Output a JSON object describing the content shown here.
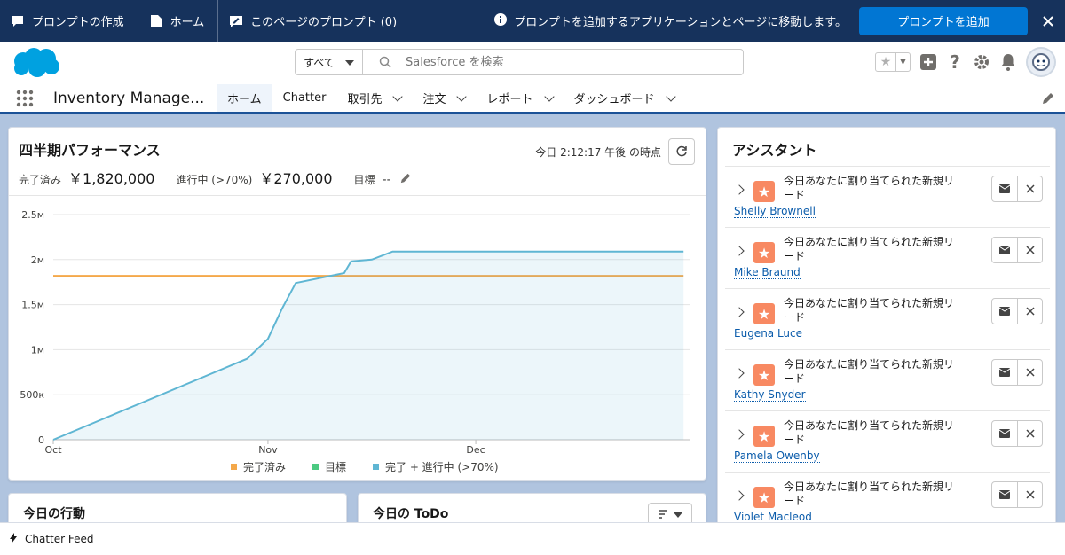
{
  "prompt_bar": {
    "create_prompt": "プロンプトの作成",
    "home": "ホーム",
    "page_prompts": "このページのプロンプト (0)",
    "info_message": "プロンプトを追加するアプリケーションとページに移動します。",
    "add_prompt": "プロンプトを追加"
  },
  "search": {
    "scope": "すべて",
    "placeholder": "Salesforce を検索"
  },
  "nav": {
    "app_name": "Inventory Manage...",
    "tabs": [
      {
        "label": "ホーム"
      },
      {
        "label": "Chatter"
      },
      {
        "label": "取引先"
      },
      {
        "label": "注文"
      },
      {
        "label": "レポート"
      },
      {
        "label": "ダッシュボード"
      }
    ]
  },
  "performance": {
    "title": "四半期パフォーマンス",
    "as_of": "今日 2:12:17 午後 の時点",
    "closed_label": "完了済み",
    "closed_value": "￥1,820,000",
    "open_label": "進行中 (>70%)",
    "open_value": "￥270,000",
    "goal_label": "目標",
    "goal_value": "--"
  },
  "chart_data": {
    "type": "area",
    "x_ticks": [
      "Oct",
      "Nov",
      "Dec"
    ],
    "y_ticks": [
      "0",
      "500к",
      "1м",
      "1.5м",
      "2м",
      "2.5м"
    ],
    "ylim": [
      0,
      2500000
    ],
    "legend_position": "bottom",
    "series": [
      {
        "name": "完了済み",
        "color": "#f4a84a",
        "type": "line",
        "points": [
          [
            "Oct 1",
            1820000
          ],
          [
            "Dec 31",
            1820000
          ]
        ]
      },
      {
        "name": "目標",
        "color": "#4bca81",
        "type": "line",
        "points": []
      },
      {
        "name": "完了 + 進行中 (>70%)",
        "color": "#5fb6d3",
        "type": "area",
        "points": [
          [
            "Oct 1",
            0
          ],
          [
            "Oct 29",
            900000
          ],
          [
            "Nov 1",
            1120000
          ],
          [
            "Nov 3",
            1450000
          ],
          [
            "Nov 5",
            1740000
          ],
          [
            "Nov 12",
            1850000
          ],
          [
            "Nov 13",
            1980000
          ],
          [
            "Nov 16",
            2000000
          ],
          [
            "Nov 19",
            2090000
          ],
          [
            "Dec 31",
            2090000
          ]
        ]
      }
    ]
  },
  "assistant": {
    "title": "アシスタント",
    "leads": [
      {
        "text": "今日あなたに割り当てられた新規リード",
        "name": "Shelly Brownell"
      },
      {
        "text": "今日あなたに割り当てられた新規リード",
        "name": "Mike Braund"
      },
      {
        "text": "今日あなたに割り当てられた新規リード",
        "name": "Eugena Luce"
      },
      {
        "text": "今日あなたに割り当てられた新規リード",
        "name": "Kathy Snyder"
      },
      {
        "text": "今日あなたに割り当てられた新規リード",
        "name": "Pamela Owenby"
      },
      {
        "text": "今日あなたに割り当てられた新規リード",
        "name": "Violet Macleod"
      }
    ]
  },
  "today_events": {
    "title": "今日の行動"
  },
  "today_todo": {
    "title": "今日の ToDo"
  },
  "footer": {
    "chatter_feed": "Chatter Feed"
  },
  "colors": {
    "brand_dark": "#16325c",
    "brand_button": "#0176d3",
    "nav_accent": "#1b5297",
    "lead_icon": "#f88962",
    "link": "#0b5cab"
  }
}
